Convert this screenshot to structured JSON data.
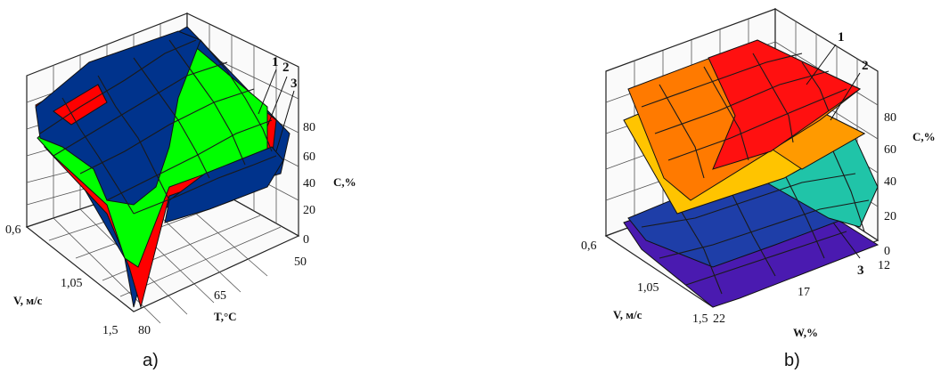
{
  "chart_data": [
    {
      "type": "surface3d",
      "caption": "a)",
      "x_axis": {
        "label": "V, м/с",
        "ticks": [
          "0,6",
          "1,05",
          "1,5"
        ]
      },
      "y_axis": {
        "label": "T,°C",
        "ticks": [
          "80",
          "65",
          "50"
        ]
      },
      "z_axis": {
        "label": "C,%",
        "ticks": [
          "0",
          "20",
          "40",
          "60",
          "80"
        ]
      },
      "surface_labels": [
        "1",
        "2",
        "3"
      ],
      "colors": {
        "red": "#ff0000",
        "green": "#00ff00",
        "blue": "#00338c"
      }
    },
    {
      "type": "surface3d",
      "caption": "b)",
      "x_axis": {
        "label": "V, м/с",
        "ticks": [
          "0,6",
          "1,05",
          "1,5"
        ]
      },
      "y_axis": {
        "label": "W,%",
        "ticks": [
          "22",
          "17",
          "12"
        ]
      },
      "z_axis": {
        "label": "C,%",
        "ticks": [
          "0",
          "20",
          "40",
          "60",
          "80"
        ]
      },
      "surface_labels": [
        "1",
        "2",
        "3"
      ],
      "colors": {
        "red": "#ff1010",
        "orange": "#ff7a00",
        "yellow": "#ffc400",
        "teal": "#20c4a8",
        "blue": "#1e3ea8",
        "violet": "#4a1ab0"
      }
    }
  ]
}
